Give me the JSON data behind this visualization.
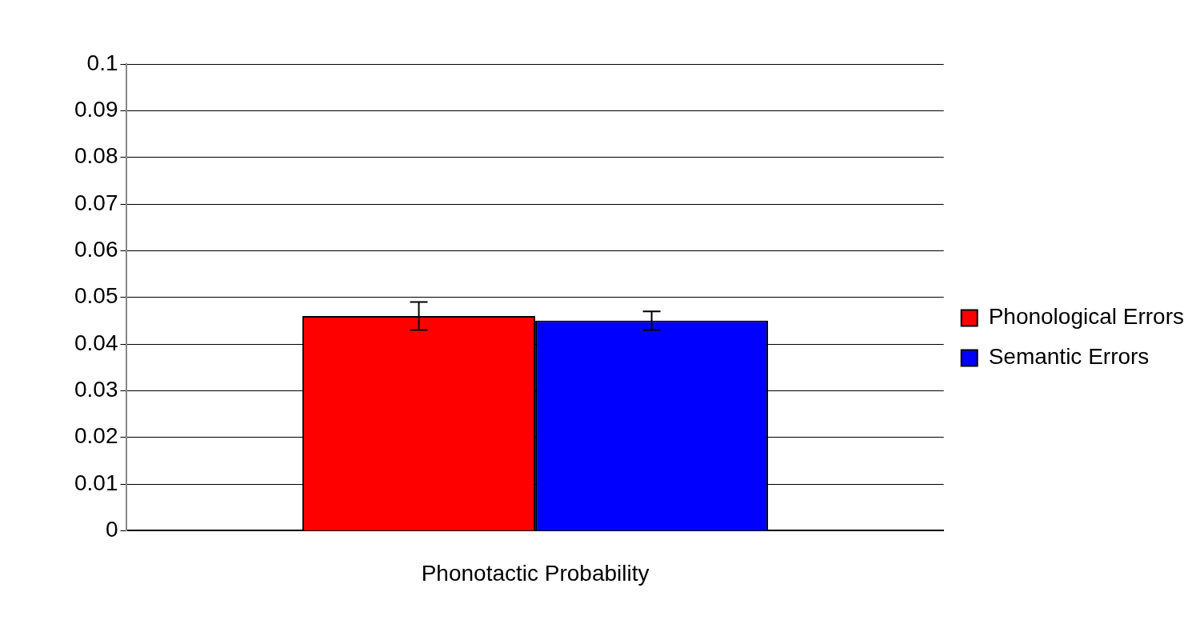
{
  "chart_data": {
    "type": "bar",
    "categories": [
      "Phonotactic Probability"
    ],
    "series": [
      {
        "name": "Phonological Errors",
        "color": "#ff0000",
        "values": [
          0.046
        ],
        "errors": [
          0.003
        ]
      },
      {
        "name": "Semantic Errors",
        "color": "#0000ff",
        "values": [
          0.045
        ],
        "errors": [
          0.002
        ]
      }
    ],
    "ylim": [
      0,
      0.1
    ],
    "yticks": [
      0,
      0.01,
      0.02,
      0.03,
      0.04,
      0.05,
      0.06,
      0.07,
      0.08,
      0.09,
      0.1
    ],
    "grid": "y",
    "legend": "right"
  }
}
